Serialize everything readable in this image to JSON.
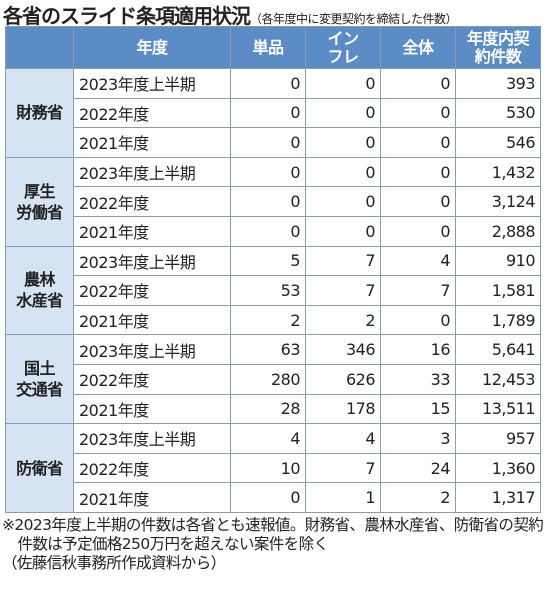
{
  "title": "各省のスライド条項適用状況",
  "subtitle": "（各年度中に変更契約を締結した件数）",
  "table": {
    "header": [
      [
        "年度"
      ],
      [
        "単品"
      ],
      [
        "イン",
        "フレ"
      ],
      [
        "全体"
      ],
      [
        "年度内契",
        "約件数"
      ]
    ],
    "groups": [
      {
        "ministry": [
          "財務省"
        ],
        "rows": [
          [
            "2023年度上半期",
            "0",
            "0",
            "0",
            "393"
          ],
          [
            "2022年度",
            "0",
            "0",
            "0",
            "530"
          ],
          [
            "2021年度",
            "0",
            "0",
            "0",
            "546"
          ]
        ]
      },
      {
        "ministry": [
          "厚生",
          "労働省"
        ],
        "rows": [
          [
            "2023年度上半期",
            "0",
            "0",
            "0",
            "1,432"
          ],
          [
            "2022年度",
            "0",
            "0",
            "0",
            "3,124"
          ],
          [
            "2021年度",
            "0",
            "0",
            "0",
            "2,888"
          ]
        ]
      },
      {
        "ministry": [
          "農林",
          "水産省"
        ],
        "rows": [
          [
            "2023年度上半期",
            "5",
            "7",
            "4",
            "910"
          ],
          [
            "2022年度",
            "53",
            "7",
            "7",
            "1,581"
          ],
          [
            "2021年度",
            "2",
            "2",
            "0",
            "1,789"
          ]
        ]
      },
      {
        "ministry": [
          "国土",
          "交通省"
        ],
        "rows": [
          [
            "2023年度上半期",
            "63",
            "346",
            "16",
            "5,641"
          ],
          [
            "2022年度",
            "280",
            "626",
            "33",
            "12,453"
          ],
          [
            "2021年度",
            "28",
            "178",
            "15",
            "13,511"
          ]
        ]
      },
      {
        "ministry": [
          "防衛省"
        ],
        "rows": [
          [
            "2023年度上半期",
            "4",
            "4",
            "3",
            "957"
          ],
          [
            "2022年度",
            "10",
            "7",
            "24",
            "1,360"
          ],
          [
            "2021年度",
            "0",
            "1",
            "2",
            "1,317"
          ]
        ]
      }
    ]
  },
  "notes": [
    "※2023年度上半期の件数は各省とも速報値。財務省、農林水産省、防衛省の契約件数は予定価格250万円を超えない案件を除く",
    "（佐藤信秋事務所作成資料から）"
  ]
}
